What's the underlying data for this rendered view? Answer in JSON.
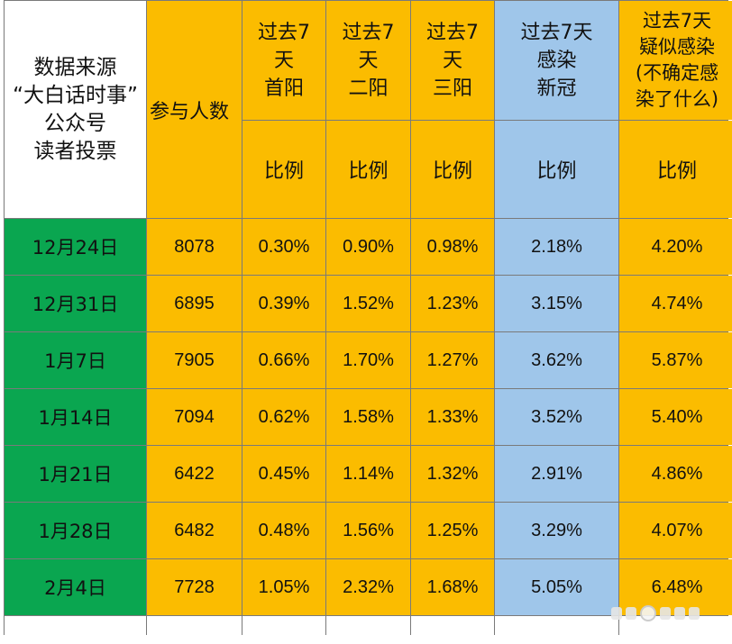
{
  "header": {
    "source_lines": [
      "数据来源",
      "“大白话时事”",
      "公众号",
      "读者投票"
    ],
    "participants": "参与人数",
    "first_pos": [
      "过去7",
      "天",
      "首阳"
    ],
    "second_pos": [
      "过去7",
      "天",
      "二阳"
    ],
    "third_pos": [
      "过去7",
      "天",
      "三阳"
    ],
    "infected": [
      "过去7天",
      "感染",
      "新冠"
    ],
    "suspected": [
      "过去7天",
      "疑似感染",
      "(不确定感",
      "染了什么)"
    ],
    "ratio": "比例"
  },
  "rows": [
    {
      "date": "12月24日",
      "participants": "8078",
      "first": "0.30%",
      "second": "0.90%",
      "third": "0.98%",
      "infected": "2.18%",
      "suspected": "4.20%"
    },
    {
      "date": "12月31日",
      "participants": "6895",
      "first": "0.39%",
      "second": "1.52%",
      "third": "1.23%",
      "infected": "3.15%",
      "suspected": "4.74%"
    },
    {
      "date": "1月7日",
      "participants": "7905",
      "first": "0.66%",
      "second": "1.70%",
      "third": "1.27%",
      "infected": "3.62%",
      "suspected": "5.87%"
    },
    {
      "date": "1月14日",
      "participants": "7094",
      "first": "0.62%",
      "second": "1.58%",
      "third": "1.33%",
      "infected": "3.52%",
      "suspected": "5.40%"
    },
    {
      "date": "1月21日",
      "participants": "6422",
      "first": "0.45%",
      "second": "1.14%",
      "third": "1.32%",
      "infected": "2.91%",
      "suspected": "4.86%"
    },
    {
      "date": "1月28日",
      "participants": "6482",
      "first": "0.48%",
      "second": "1.56%",
      "third": "1.25%",
      "infected": "3.29%",
      "suspected": "4.07%"
    },
    {
      "date": "2月4日",
      "participants": "7728",
      "first": "1.05%",
      "second": "2.32%",
      "third": "1.68%",
      "infected": "5.05%",
      "suspected": "6.48%"
    }
  ],
  "colors": {
    "orange": "#fbbc00",
    "blue": "#9fc6ea",
    "green": "#0aa650"
  }
}
